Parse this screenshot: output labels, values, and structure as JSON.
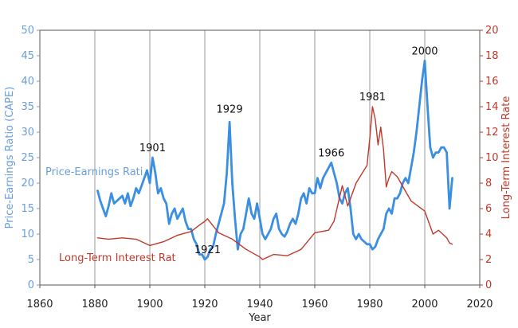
{
  "chart_data": {
    "type": "line",
    "xlabel": "Year",
    "ylabel_left": "Price-Earnings Ratio (CAPE)",
    "ylabel_right": "Long-Term Interest Rate",
    "xlim": [
      1860,
      2020
    ],
    "ylim_left": [
      0,
      50
    ],
    "ylim_right": [
      0,
      20
    ],
    "x_ticks": [
      1860,
      1880,
      1900,
      1920,
      1940,
      1960,
      1980,
      2000,
      2020
    ],
    "y_left_ticks": [
      0,
      5,
      10,
      15,
      20,
      25,
      30,
      35,
      40,
      45,
      50
    ],
    "y_right_ticks": [
      0,
      2,
      4,
      6,
      8,
      10,
      12,
      14,
      16,
      18,
      20
    ],
    "grid": "vertical",
    "series": [
      {
        "name": "Price-Earnings Rati",
        "axis": "left",
        "color": "#3b8fe3",
        "x": [
          1881,
          1882,
          1883,
          1884,
          1885,
          1886,
          1887,
          1888,
          1889,
          1890,
          1891,
          1892,
          1893,
          1894,
          1895,
          1896,
          1897,
          1898,
          1899,
          1900,
          1901,
          1902,
          1903,
          1904,
          1905,
          1906,
          1907,
          1908,
          1909,
          1910,
          1911,
          1912,
          1913,
          1914,
          1915,
          1916,
          1917,
          1918,
          1919,
          1920,
          1921,
          1922,
          1923,
          1924,
          1925,
          1926,
          1927,
          1928,
          1929,
          1930,
          1931,
          1932,
          1933,
          1934,
          1935,
          1936,
          1937,
          1938,
          1939,
          1940,
          1941,
          1942,
          1943,
          1944,
          1945,
          1946,
          1947,
          1948,
          1949,
          1950,
          1951,
          1952,
          1953,
          1954,
          1955,
          1956,
          1957,
          1958,
          1959,
          1960,
          1961,
          1962,
          1963,
          1964,
          1965,
          1966,
          1967,
          1968,
          1969,
          1970,
          1971,
          1972,
          1973,
          1974,
          1975,
          1976,
          1977,
          1978,
          1979,
          1980,
          1981,
          1982,
          1983,
          1984,
          1985,
          1986,
          1987,
          1988,
          1989,
          1990,
          1991,
          1992,
          1993,
          1994,
          1995,
          1996,
          1997,
          1998,
          1999,
          2000,
          2001,
          2002,
          2003,
          2004,
          2005,
          2006,
          2007,
          2008,
          2009,
          2010
        ],
        "values": [
          18.5,
          16.5,
          15,
          13.5,
          15.5,
          18,
          16,
          16.5,
          17,
          17.5,
          16,
          18,
          15.5,
          17,
          19,
          18,
          19.5,
          21,
          22.5,
          20,
          25,
          22,
          18,
          19,
          17,
          16,
          12,
          14,
          15,
          13,
          14,
          15,
          12.5,
          11,
          11,
          9,
          8,
          6,
          6,
          5,
          5.5,
          7,
          7.5,
          10,
          12,
          14,
          16,
          22,
          32,
          20,
          13,
          7,
          10,
          11,
          14,
          17,
          14,
          13,
          16,
          13,
          10,
          9,
          10,
          11,
          13,
          14,
          11,
          10,
          9.5,
          10.5,
          12,
          13,
          12,
          14,
          17,
          18,
          16,
          19,
          18,
          18,
          21,
          19,
          21,
          22,
          23,
          24,
          22,
          20,
          17,
          16,
          18,
          19,
          15,
          10,
          9,
          10,
          9,
          8.5,
          8,
          8,
          7,
          7.5,
          9,
          10,
          11,
          14,
          15,
          14,
          17,
          17,
          18,
          20,
          21,
          20,
          23,
          26,
          30,
          35,
          40,
          44,
          35,
          27,
          25,
          26,
          26,
          27,
          27,
          26,
          15,
          21
        ]
      },
      {
        "name": "Long-Term Interest Rat",
        "axis": "right",
        "color": "#c0392b",
        "x": [
          1881,
          1885,
          1890,
          1895,
          1900,
          1905,
          1910,
          1915,
          1918,
          1920,
          1921,
          1925,
          1930,
          1935,
          1940,
          1941,
          1945,
          1950,
          1955,
          1960,
          1965,
          1967,
          1970,
          1972,
          1975,
          1979,
          1980,
          1981,
          1982,
          1983,
          1984,
          1985,
          1986,
          1987,
          1988,
          1990,
          1995,
          2000,
          2003,
          2005,
          2008,
          2009,
          2010
        ],
        "values": [
          3.7,
          3.6,
          3.7,
          3.6,
          3.1,
          3.4,
          3.9,
          4.2,
          4.7,
          5.0,
          5.2,
          4.1,
          3.6,
          2.8,
          2.2,
          2.0,
          2.4,
          2.3,
          2.8,
          4.1,
          4.3,
          5.0,
          7.8,
          6.2,
          8.0,
          9.4,
          11.5,
          14.0,
          13.0,
          11.0,
          12.4,
          10.6,
          7.7,
          8.4,
          8.9,
          8.5,
          6.6,
          5.8,
          4.0,
          4.3,
          3.7,
          3.3,
          3.2
        ]
      }
    ],
    "annotations": [
      {
        "text": "1901",
        "x": 1901,
        "y": 25
      },
      {
        "text": "1921",
        "x": 1921,
        "y": 5
      },
      {
        "text": "1929",
        "x": 1929,
        "y": 32.6
      },
      {
        "text": "1966",
        "x": 1966,
        "y": 24
      },
      {
        "text": "1981",
        "x": 1981,
        "y": 14
      },
      {
        "text": "2000",
        "x": 2000,
        "y": 44
      }
    ]
  }
}
